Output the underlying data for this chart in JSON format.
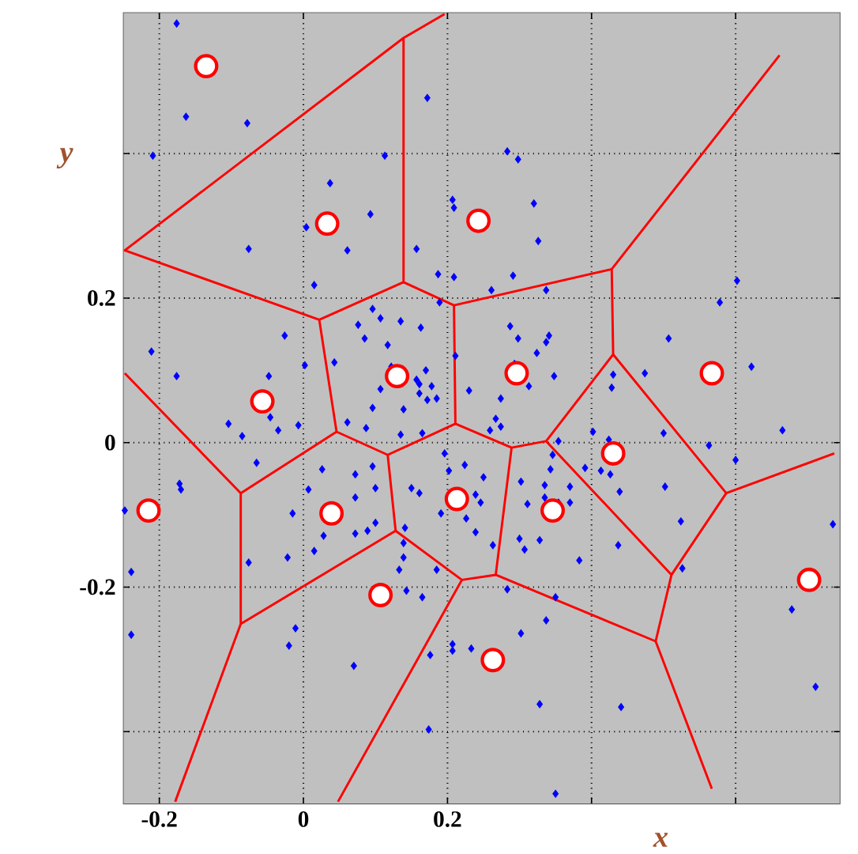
{
  "chart_data": {
    "type": "scatter",
    "xlabel": "x",
    "ylabel": "y",
    "xlim": [
      -0.25,
      0.745
    ],
    "ylim": [
      -0.5,
      0.595
    ],
    "xticks": [
      -0.2,
      0,
      0.2,
      {
        "value": 0.4,
        "label": null
      },
      {
        "value": 0.6,
        "label": null
      }
    ],
    "yticks": [
      {
        "value": -0.4,
        "label": null
      },
      -0.2,
      0,
      0.2,
      {
        "value": 0.4,
        "label": null
      }
    ],
    "grid": true,
    "series": [
      {
        "type": "line",
        "color": "#ff0000",
        "marker": "none",
        "line_style": "solid",
        "x": [
          0.196,
          0.139,
          -0.248,
          0.022,
          0.139,
          0.139,
          null,
          0.139,
          0.209,
          0.428,
          0.661,
          null,
          0.209,
          0.211,
          0.117,
          0.128,
          -0.087,
          -0.087,
          -0.248,
          null,
          0.022,
          0.046,
          -0.087,
          null,
          0.046,
          0.117,
          null,
          0.428,
          0.43,
          0.337,
          0.511,
          0.587,
          0.737,
          null,
          0.43,
          0.587,
          null,
          0.511,
          0.489,
          0.567,
          null,
          0.489,
          0.267,
          0.22,
          0.048,
          null,
          0.267,
          0.289,
          0.337,
          null,
          0.289,
          0.211,
          null,
          0.128,
          0.22,
          null,
          -0.087,
          -0.178
        ],
        "values": [
          0.593,
          0.56,
          0.266,
          0.17,
          0.222,
          0.56,
          null,
          0.222,
          0.19,
          0.24,
          0.536,
          null,
          0.19,
          0.026,
          -0.017,
          -0.122,
          -0.251,
          -0.07,
          0.096,
          null,
          0.17,
          0.015,
          -0.07,
          null,
          0.015,
          -0.017,
          null,
          0.24,
          0.122,
          0.002,
          -0.183,
          -0.07,
          -0.015,
          null,
          0.122,
          -0.07,
          null,
          -0.183,
          -0.275,
          -0.479,
          null,
          -0.275,
          -0.183,
          -0.19,
          -0.497,
          null,
          -0.183,
          -0.007,
          0.002,
          null,
          -0.007,
          0.026,
          null,
          -0.122,
          -0.19,
          null,
          -0.251,
          -0.497
        ]
      },
      {
        "type": "scatter",
        "color": "#0000ff",
        "marker": "diamond",
        "x": [
          -0.176,
          -0.163,
          -0.078,
          -0.209,
          0.037,
          0.004,
          -0.076,
          0.061,
          0.015,
          -0.026,
          -0.211,
          -0.176,
          -0.048,
          0.002,
          0.043,
          0.076,
          0.172,
          0.113,
          0.283,
          0.298,
          0.093,
          0.207,
          0.209,
          0.32,
          0.326,
          0.157,
          0.187,
          0.209,
          0.291,
          0.261,
          0.337,
          0.189,
          0.096,
          0.107,
          0.135,
          0.163,
          0.085,
          0.117,
          0.287,
          0.298,
          0.341,
          0.337,
          0.324,
          0.211,
          0.122,
          0.17,
          0.157,
          0.161,
          0.178,
          0.107,
          0.161,
          0.172,
          0.185,
          0.23,
          0.274,
          0.313,
          0.348,
          0.293,
          0.602,
          0.578,
          0.507,
          0.474,
          0.43,
          0.428,
          0.622,
          -0.104,
          -0.085,
          -0.046,
          -0.035,
          -0.007,
          -0.065,
          -0.172,
          -0.17,
          -0.248,
          -0.015,
          0.007,
          0.026,
          0.072,
          0.072,
          0.028,
          0.072,
          0.015,
          -0.022,
          -0.076,
          -0.239,
          -0.239,
          -0.011,
          -0.02,
          0.07,
          0.061,
          0.096,
          0.139,
          0.267,
          0.274,
          0.259,
          0.087,
          0.135,
          0.165,
          0.196,
          0.224,
          0.202,
          0.25,
          0.096,
          0.15,
          0.161,
          0.1,
          0.239,
          0.246,
          0.191,
          0.226,
          0.239,
          0.141,
          0.1,
          0.089,
          0.263,
          0.139,
          0.139,
          0.185,
          0.133,
          0.143,
          0.165,
          0.283,
          0.302,
          0.335,
          0.37,
          0.391,
          0.346,
          0.354,
          0.343,
          0.335,
          0.311,
          0.354,
          0.37,
          0.3,
          0.307,
          0.328,
          0.383,
          0.35,
          0.337,
          0.302,
          0.207,
          0.207,
          0.233,
          0.176,
          0.328,
          0.174,
          0.35,
          0.402,
          0.424,
          0.5,
          0.563,
          0.6,
          0.665,
          0.413,
          0.426,
          0.439,
          0.502,
          0.524,
          0.437,
          0.526,
          0.678,
          0.711,
          0.735,
          0.441
        ],
        "values": [
          0.58,
          0.451,
          0.442,
          0.397,
          0.359,
          0.298,
          0.268,
          0.266,
          0.218,
          0.148,
          0.126,
          0.092,
          0.092,
          0.107,
          0.111,
          0.163,
          0.477,
          0.397,
          0.403,
          0.392,
          0.316,
          0.336,
          0.325,
          0.331,
          0.279,
          0.268,
          0.233,
          0.229,
          0.231,
          0.211,
          0.211,
          0.194,
          0.185,
          0.172,
          0.168,
          0.159,
          0.144,
          0.135,
          0.161,
          0.144,
          0.148,
          0.139,
          0.124,
          0.12,
          0.105,
          0.1,
          0.087,
          0.081,
          0.078,
          0.074,
          0.068,
          0.059,
          0.061,
          0.072,
          0.061,
          0.078,
          0.092,
          0.109,
          0.224,
          0.194,
          0.144,
          0.096,
          0.094,
          0.076,
          0.105,
          0.026,
          0.009,
          0.035,
          0.017,
          0.024,
          -0.028,
          -0.057,
          -0.065,
          -0.094,
          -0.098,
          -0.065,
          -0.037,
          -0.044,
          -0.076,
          -0.129,
          -0.126,
          -0.15,
          -0.159,
          -0.166,
          -0.179,
          -0.266,
          -0.257,
          -0.281,
          -0.309,
          0.028,
          0.048,
          0.046,
          0.033,
          0.022,
          0.017,
          0.02,
          0.011,
          0.013,
          -0.015,
          -0.031,
          -0.039,
          -0.048,
          -0.033,
          -0.063,
          -0.07,
          -0.063,
          -0.072,
          -0.083,
          -0.098,
          -0.105,
          -0.124,
          -0.118,
          -0.111,
          -0.122,
          -0.142,
          -0.139,
          -0.159,
          -0.176,
          -0.176,
          -0.205,
          -0.214,
          -0.203,
          -0.054,
          -0.059,
          -0.061,
          -0.035,
          -0.017,
          0.002,
          -0.037,
          -0.076,
          -0.085,
          -0.083,
          -0.083,
          -0.133,
          -0.148,
          -0.135,
          -0.163,
          -0.214,
          -0.246,
          -0.264,
          -0.279,
          -0.288,
          -0.285,
          -0.294,
          -0.362,
          -0.397,
          -0.486,
          0.015,
          0.004,
          0.013,
          -0.004,
          -0.024,
          0.017,
          -0.039,
          -0.044,
          -0.068,
          -0.061,
          -0.109,
          -0.142,
          -0.174,
          -0.231,
          -0.338,
          -0.113,
          -0.366
        ]
      },
      {
        "type": "scatter",
        "color": "#ff0000",
        "marker": "circle",
        "x": [
          -0.135,
          0.033,
          0.243,
          -0.057,
          0.13,
          0.296,
          0.567,
          0.43,
          -0.215,
          0.039,
          0.213,
          0.346,
          0.107,
          0.263,
          0.702
        ],
        "values": [
          0.521,
          0.303,
          0.307,
          0.057,
          0.092,
          0.096,
          0.096,
          -0.015,
          -0.094,
          -0.098,
          -0.078,
          -0.094,
          -0.211,
          -0.301,
          -0.19
        ]
      }
    ]
  }
}
